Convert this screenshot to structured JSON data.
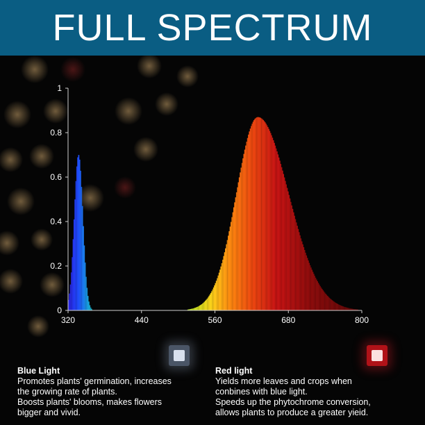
{
  "banner": {
    "title": "FULL SPECTRUM"
  },
  "colors": {
    "banner_bg": "#0a5d83",
    "blue_peak": "#1f4fff",
    "red_peak": "#c81414"
  },
  "chart_data": {
    "type": "area",
    "xlim": [
      320,
      800
    ],
    "ylim": [
      0,
      1
    ],
    "xticks": [
      320,
      440,
      560,
      680,
      800
    ],
    "yticks": [
      0,
      0.2,
      0.4,
      0.6,
      0.8,
      1
    ],
    "xlabel": "",
    "ylabel": "",
    "series": [
      {
        "peak_x": 337,
        "peak_y": 0.7,
        "width": 7
      },
      {
        "peak_x": 630,
        "peak_y": 0.87,
        "width_left": 35,
        "width_right": 50
      }
    ],
    "spectrum_sample_points": [
      [
        320,
        0.0
      ],
      [
        330,
        0.15
      ],
      [
        337,
        0.7
      ],
      [
        345,
        0.2
      ],
      [
        360,
        0.02
      ],
      [
        500,
        0.02
      ],
      [
        540,
        0.12
      ],
      [
        580,
        0.55
      ],
      [
        630,
        0.87
      ],
      [
        680,
        0.62
      ],
      [
        730,
        0.28
      ],
      [
        800,
        0.05
      ]
    ]
  },
  "info": {
    "blue": {
      "icon": "led-chip-icon",
      "title": "Blue Light",
      "lines": [
        "Promotes plants' germination, increases",
        "the growing rate of plants.",
        "Boosts plants' blooms, makes flowers",
        "bigger and vivid."
      ]
    },
    "red": {
      "icon": "led-chip-icon",
      "title": "Red light",
      "lines": [
        "Yields more leaves and crops when",
        "conbines with blue light.",
        "Speeds up the phytochrome conversion,",
        "allows plants to produce a greater yieid."
      ]
    }
  }
}
